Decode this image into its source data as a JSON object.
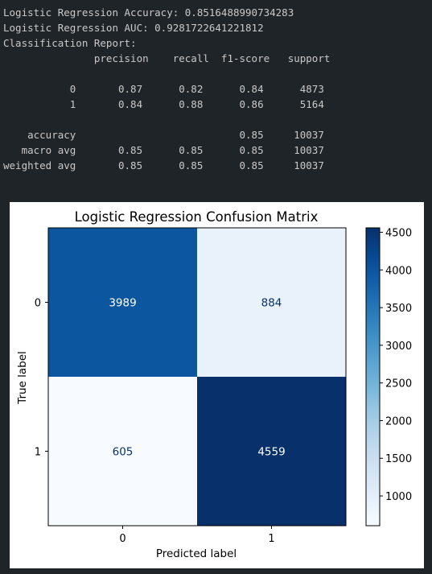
{
  "console": {
    "lines": [
      "Logistic Regression Accuracy: 0.8516488990734283",
      "Logistic Regression AUC: 0.9281722641221812",
      "Classification Report:",
      "               precision    recall  f1-score   support",
      "",
      "           0       0.87      0.82      0.84      4873",
      "           1       0.84      0.88      0.86      5164",
      "",
      "    accuracy                           0.85     10037",
      "   macro avg       0.85      0.85      0.85     10037",
      "weighted avg       0.85      0.85      0.85     10037"
    ]
  },
  "chart_data": {
    "type": "heatmap",
    "title": "Logistic Regression Confusion Matrix",
    "xlabel": "Predicted label",
    "ylabel": "True label",
    "x_categories": [
      "0",
      "1"
    ],
    "y_categories": [
      "0",
      "1"
    ],
    "values": [
      [
        3989,
        884
      ],
      [
        605,
        4559
      ]
    ],
    "colormap": "Blues",
    "colorbar": {
      "min": 605,
      "max": 4559,
      "ticks": [
        1000,
        1500,
        2000,
        2500,
        3000,
        3500,
        4000,
        4500
      ]
    },
    "grid": false
  }
}
